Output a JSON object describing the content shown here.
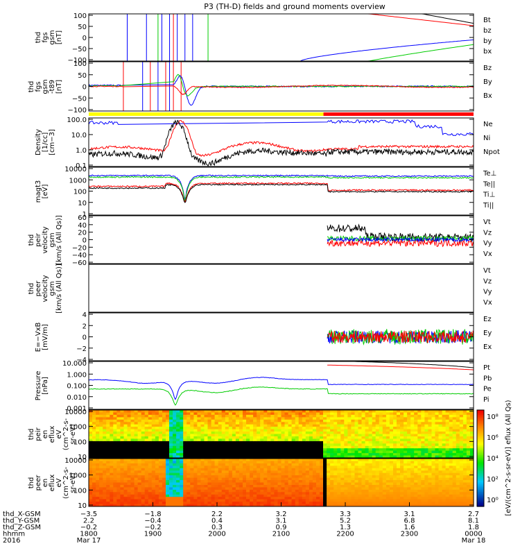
{
  "title": "P3 (TH-D) fields and ground moments overview",
  "colors": {
    "black": "#000000",
    "red": "#ff0000",
    "green": "#00cc00",
    "blue": "#0000ff",
    "yellow": "#ffff00"
  },
  "chart_data": [
    {
      "type": "line",
      "id": "fgs",
      "ylabel": [
        "thd",
        "fgs",
        "gsm",
        "[nT]"
      ],
      "yticks": [
        "100",
        "50",
        "0",
        "−50",
        "−100"
      ],
      "ylim": [
        -100,
        100
      ],
      "legend": [
        {
          "name": "Bt",
          "color": "#000000"
        },
        {
          "name": "bz",
          "color": "#ff0000"
        },
        {
          "name": "by",
          "color": "#00cc00"
        },
        {
          "name": "bx",
          "color": "#0000ff"
        }
      ]
    },
    {
      "type": "line",
      "id": "fgs2",
      "ylabel": [
        "thd",
        "fgs",
        "gsm",
        "-t89",
        "[nT]"
      ],
      "yticks": [
        "100",
        "50",
        "0",
        "−50",
        "−100"
      ],
      "ylim": [
        -120,
        120
      ],
      "legend": [
        {
          "name": "Bz",
          "color": "#ff0000"
        },
        {
          "name": "By",
          "color": "#00cc00"
        },
        {
          "name": "Bx",
          "color": "#0000ff"
        }
      ]
    },
    {
      "type": "line",
      "id": "density",
      "ylabel": [
        "Density",
        "[1/cc]",
        "[cm−3]"
      ],
      "yticks": [
        "100.0",
        "10.0",
        "1.0",
        "0.1"
      ],
      "ylim": [
        0.1,
        100
      ],
      "scale": "log",
      "legend": [
        {
          "name": "Ne",
          "color": "#ff0000"
        },
        {
          "name": "Ni",
          "color": "#000000"
        },
        {
          "name": "Npot",
          "color": "#0000ff"
        }
      ]
    },
    {
      "type": "line",
      "id": "temp",
      "ylabel": [
        "magt3",
        "[eV]"
      ],
      "yticks": [
        "10000",
        "1000",
        "100",
        "10",
        "1"
      ],
      "ylim": [
        1,
        10000
      ],
      "scale": "log",
      "legend": [
        {
          "name": "Te⊥",
          "color": "#ff0000"
        },
        {
          "name": "Te||",
          "color": "#000000"
        },
        {
          "name": "Ti⊥",
          "color": "#ff0000"
        },
        {
          "name": "Ti||",
          "color": "#00cc00"
        }
      ]
    },
    {
      "type": "line",
      "id": "peir",
      "ylabel": [
        "thd",
        "peir",
        "velocity",
        "gsm",
        "[km/s (All Qs)]"
      ],
      "yticks": [
        "60",
        "40",
        "20",
        "0",
        "−20",
        "−40",
        "−60"
      ],
      "ylim": [
        -60,
        60
      ],
      "legend": [
        {
          "name": "Vt",
          "color": "#000000"
        },
        {
          "name": "Vz",
          "color": "#ff0000"
        },
        {
          "name": "Vy",
          "color": "#00cc00"
        },
        {
          "name": "Vx",
          "color": "#0000ff"
        }
      ]
    },
    {
      "type": "line",
      "id": "peer",
      "ylabel": [
        "thd",
        "peer",
        "velocity",
        "gsm",
        "[km/s (All Qs)]"
      ],
      "yticks": [],
      "ylim": [
        -60,
        60
      ],
      "legend": [
        {
          "name": "Vt",
          "color": "#000000"
        },
        {
          "name": "Vz",
          "color": "#ff0000"
        },
        {
          "name": "Vy",
          "color": "#00cc00"
        },
        {
          "name": "Vx",
          "color": "#0000ff"
        }
      ]
    },
    {
      "type": "line",
      "id": "efield",
      "ylabel": [
        "E=−VxB",
        "[mV/m]"
      ],
      "yticks": [
        "4",
        "2",
        "0",
        "−2",
        "−4"
      ],
      "ylim": [
        -4,
        4
      ],
      "legend": [
        {
          "name": "Ez",
          "color": "#ff0000"
        },
        {
          "name": "Ey",
          "color": "#00cc00"
        },
        {
          "name": "Ex",
          "color": "#0000ff"
        }
      ]
    },
    {
      "type": "line",
      "id": "pressure",
      "ylabel": [
        "Pressure",
        "[nPa]"
      ],
      "yticks": [
        "10.000",
        "1.000",
        "0.100",
        "0.010",
        "0.001"
      ],
      "ylim": [
        0.001,
        10
      ],
      "scale": "log",
      "legend": [
        {
          "name": "Pt",
          "color": "#000000"
        },
        {
          "name": "Pb",
          "color": "#ff0000"
        },
        {
          "name": "Pe",
          "color": "#00cc00"
        },
        {
          "name": "Pi",
          "color": "#0000ff"
        }
      ]
    },
    {
      "type": "heatmap",
      "id": "peir_en",
      "ylabel": [
        "thd",
        "peir",
        "en",
        "eflux",
        "eV",
        "(cm^2-s-",
        "sr-eV)"
      ],
      "yticks": [
        "10000",
        "1000",
        "100",
        "10"
      ],
      "ylim": [
        10,
        20000
      ],
      "scale": "log"
    },
    {
      "type": "heatmap",
      "id": "peer_en",
      "ylabel": [
        "thd",
        "peer",
        "en",
        "eflux",
        "eV",
        "(cm^2-s-",
        "sr-eV)"
      ],
      "yticks": [
        "10000",
        "1000",
        "100",
        "10"
      ],
      "ylim": [
        10,
        20000
      ],
      "scale": "log"
    }
  ],
  "colorbar": {
    "ticks": [
      "10⁸",
      "10⁶",
      "10⁴",
      "10²",
      "10⁰"
    ],
    "label": "[eV/(cm^2-s-sr-eV)]",
    "label2": "eflux (All Qs)"
  },
  "xaxis": {
    "rows": [
      {
        "name": "thd_X-GSM",
        "values": [
          "−3.5",
          "−1.8",
          "2.2",
          "3.2",
          "3.3",
          "3.1",
          "2.7"
        ]
      },
      {
        "name": "thd_Y-GSM",
        "values": [
          "2.2",
          "−0.4",
          "0.4",
          "3.1",
          "5.2",
          "6.8",
          "8.1"
        ]
      },
      {
        "name": "thd_Z-GSM",
        "values": [
          "−0.2",
          "−0.2",
          "0.3",
          "0.9",
          "1.3",
          "1.6",
          "1.8"
        ]
      },
      {
        "name": "hhmm",
        "values": [
          "1800",
          "1900",
          "2000",
          "2100",
          "2200",
          "2300",
          "0000"
        ]
      },
      {
        "name": "2016",
        "values": [
          "Mar 17",
          "",
          "",
          "",
          "",
          "",
          "Mar 18"
        ]
      }
    ]
  }
}
